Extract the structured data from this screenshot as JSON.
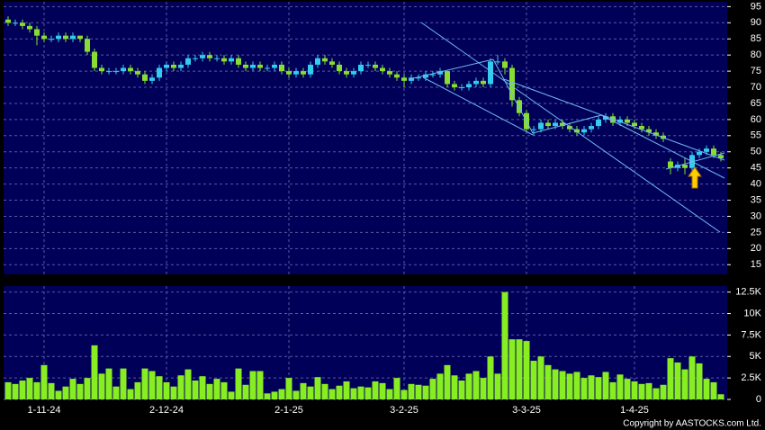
{
  "chart_data": [
    {
      "type": "candlestick",
      "ohlc": [
        [
          91,
          92,
          89,
          90
        ],
        [
          90,
          91,
          89,
          90
        ],
        [
          90,
          91,
          88,
          89
        ],
        [
          89,
          90,
          87,
          88
        ],
        [
          88,
          89,
          83,
          86
        ],
        [
          86,
          87,
          84,
          85
        ],
        [
          85,
          86,
          84,
          85
        ],
        [
          85,
          87,
          84,
          86
        ],
        [
          86,
          87,
          84,
          85
        ],
        [
          85,
          87,
          84,
          86
        ],
        [
          86,
          86,
          84,
          85
        ],
        [
          85,
          86,
          80,
          81
        ],
        [
          81,
          82,
          75,
          76
        ],
        [
          76,
          77,
          74,
          75
        ],
        [
          75,
          76,
          74,
          75
        ],
        [
          75,
          76,
          74,
          75
        ],
        [
          75,
          77,
          74,
          76
        ],
        [
          76,
          77,
          74,
          75
        ],
        [
          75,
          76,
          73,
          74
        ],
        [
          74,
          75,
          71,
          72
        ],
        [
          72,
          74,
          71,
          73
        ],
        [
          73,
          77,
          72,
          76
        ],
        [
          76,
          78,
          75,
          77
        ],
        [
          77,
          78,
          75,
          76
        ],
        [
          76,
          78,
          75,
          77
        ],
        [
          77,
          80,
          76,
          79
        ],
        [
          79,
          80,
          78,
          79
        ],
        [
          79,
          81,
          78,
          80
        ],
        [
          80,
          81,
          78,
          79
        ],
        [
          79,
          80,
          78,
          79
        ],
        [
          79,
          80,
          77,
          78
        ],
        [
          78,
          80,
          77,
          79
        ],
        [
          79,
          80,
          76,
          77
        ],
        [
          77,
          78,
          75,
          76
        ],
        [
          76,
          78,
          75,
          77
        ],
        [
          77,
          78,
          75,
          76
        ],
        [
          76,
          77,
          75,
          76
        ],
        [
          76,
          78,
          75,
          77
        ],
        [
          77,
          78,
          74,
          75
        ],
        [
          75,
          76,
          73,
          74
        ],
        [
          74,
          76,
          73,
          75
        ],
        [
          75,
          76,
          73,
          74
        ],
        [
          74,
          78,
          73,
          77
        ],
        [
          77,
          80,
          76,
          79
        ],
        [
          79,
          80,
          77,
          78
        ],
        [
          78,
          79,
          76,
          77
        ],
        [
          77,
          78,
          74,
          75
        ],
        [
          75,
          76,
          73,
          74
        ],
        [
          74,
          76,
          73,
          75
        ],
        [
          75,
          78,
          74,
          77
        ],
        [
          77,
          78,
          76,
          77
        ],
        [
          77,
          78,
          75,
          76
        ],
        [
          76,
          77,
          74,
          75
        ],
        [
          75,
          76,
          73,
          74
        ],
        [
          74,
          75,
          72,
          73
        ],
        [
          73,
          74,
          70,
          72
        ],
        [
          72,
          74,
          71,
          73
        ],
        [
          73,
          74,
          72,
          73
        ],
        [
          73,
          75,
          72,
          74
        ],
        [
          74,
          75,
          73,
          74
        ],
        [
          74,
          76,
          73,
          75
        ],
        [
          75,
          75,
          70,
          71
        ],
        [
          71,
          72,
          69,
          70
        ],
        [
          70,
          71,
          69,
          70
        ],
        [
          70,
          72,
          69,
          71
        ],
        [
          71,
          73,
          70,
          72
        ],
        [
          72,
          73,
          70,
          71
        ],
        [
          71,
          79,
          70,
          78
        ],
        [
          78,
          80,
          77,
          78
        ],
        [
          78,
          79,
          74,
          76
        ],
        [
          76,
          77,
          64,
          66
        ],
        [
          66,
          67,
          61,
          62
        ],
        [
          62,
          63,
          56,
          57
        ],
        [
          57,
          58,
          55,
          57
        ],
        [
          57,
          60,
          56,
          59
        ],
        [
          59,
          60,
          57,
          58
        ],
        [
          58,
          60,
          57,
          59
        ],
        [
          59,
          60,
          57,
          58
        ],
        [
          58,
          59,
          56,
          57
        ],
        [
          57,
          58,
          55,
          56
        ],
        [
          56,
          58,
          55,
          57
        ],
        [
          57,
          59,
          56,
          58
        ],
        [
          58,
          61,
          57,
          60
        ],
        [
          60,
          62,
          59,
          61
        ],
        [
          61,
          62,
          58,
          59
        ],
        [
          59,
          61,
          58,
          60
        ],
        [
          60,
          61,
          58,
          59
        ],
        [
          59,
          60,
          57,
          58
        ],
        [
          58,
          59,
          56,
          57
        ],
        [
          57,
          58,
          55,
          56
        ],
        [
          56,
          57,
          54,
          55
        ],
        [
          55,
          56,
          53,
          54
        ],
        [
          47,
          48,
          43,
          45
        ],
        [
          45,
          47,
          44,
          46
        ],
        [
          46,
          48,
          43,
          45
        ],
        [
          45,
          50,
          44,
          49
        ],
        [
          49,
          51,
          48,
          50
        ],
        [
          50,
          52,
          49,
          51
        ],
        [
          51,
          52,
          48,
          49
        ],
        [
          49,
          50,
          47,
          48
        ]
      ],
      "up_color": "#33ccee",
      "down_color": "#88dd33",
      "ylim": [
        12,
        96.5
      ],
      "yticks": [
        15,
        20,
        25,
        30,
        35,
        40,
        45,
        50,
        55,
        60,
        65,
        70,
        75,
        80,
        85,
        90,
        95
      ],
      "grid": true
    },
    {
      "type": "bar",
      "categories": [
        null,
        null,
        null,
        null,
        null,
        "1-11-24",
        null,
        null,
        null,
        null,
        null,
        null,
        null,
        null,
        null,
        null,
        null,
        null,
        null,
        null,
        null,
        null,
        "2-12-24",
        null,
        null,
        null,
        null,
        null,
        null,
        null,
        null,
        null,
        null,
        null,
        null,
        null,
        null,
        null,
        null,
        "2-1-25",
        null,
        null,
        null,
        null,
        null,
        null,
        null,
        null,
        null,
        null,
        null,
        null,
        null,
        null,
        null,
        "3-2-25",
        null,
        null,
        null,
        null,
        null,
        null,
        null,
        null,
        null,
        null,
        null,
        null,
        null,
        null,
        null,
        null,
        "3-3-25",
        null,
        null,
        null,
        null,
        null,
        null,
        null,
        null,
        null,
        null,
        null,
        null,
        null,
        null,
        "1-4-25",
        null,
        null,
        null,
        null,
        null,
        null,
        null,
        null,
        null,
        null,
        null,
        null
      ],
      "values": [
        2000,
        1800,
        2200,
        2500,
        2000,
        4000,
        1900,
        1000,
        1500,
        2400,
        1800,
        2500,
        6300,
        3000,
        3600,
        1500,
        3600,
        1200,
        2000,
        3600,
        3300,
        2700,
        2000,
        1500,
        2800,
        3500,
        2200,
        2700,
        1800,
        2400,
        2000,
        900,
        3600,
        1700,
        3300,
        3300,
        700,
        900,
        1200,
        2500,
        1000,
        1900,
        1500,
        2600,
        1800,
        1200,
        1600,
        2100,
        1300,
        1500,
        1400,
        2100,
        1900,
        1200,
        2500,
        1100,
        1800,
        1700,
        1600,
        2400,
        3000,
        4000,
        2800,
        2200,
        3000,
        3300,
        2500,
        5000,
        3000,
        12500,
        7000,
        7000,
        6800,
        4500,
        5000,
        4000,
        3500,
        3300,
        3000,
        3200,
        2500,
        2800,
        2600,
        3200,
        2000,
        2900,
        2400,
        2100,
        1800,
        1900,
        1300,
        1700,
        4800,
        4300,
        3500,
        5000,
        4200,
        2400,
        2000,
        600
      ],
      "color": "#88ee22",
      "ylim": [
        0,
        13200
      ],
      "yticks": [
        0,
        {
          "value": 2500,
          "label": "2.5K"
        },
        {
          "value": 5000,
          "label": "5K"
        },
        {
          "value": 7500,
          "label": "7.5K"
        },
        {
          "value": 10000,
          "label": "10K"
        },
        {
          "value": 12500,
          "label": "12.5K"
        }
      ],
      "grid": true
    }
  ],
  "footer": "Copyright by AASTOCKS.com Ltd."
}
